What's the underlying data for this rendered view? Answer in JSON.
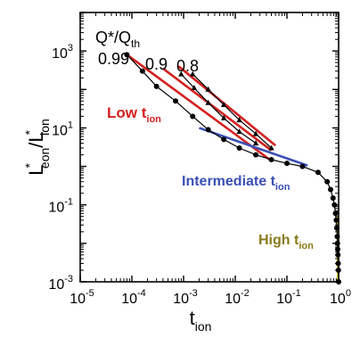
{
  "chart_data": {
    "type": "line",
    "x_scale": "log",
    "y_scale": "log",
    "xlim": [
      1e-05,
      1
    ],
    "ylim": [
      0.001,
      10000
    ],
    "x_ticks": [
      {
        "value": 1e-05,
        "base": "10",
        "exp": "-5"
      },
      {
        "value": 0.0001,
        "base": "10",
        "exp": "-4"
      },
      {
        "value": 0.001,
        "base": "10",
        "exp": "-3"
      },
      {
        "value": 0.01,
        "base": "10",
        "exp": "-2"
      },
      {
        "value": 0.1,
        "base": "10",
        "exp": "-1"
      },
      {
        "value": 1,
        "base": "10",
        "exp": "0"
      }
    ],
    "y_ticks": [
      {
        "value": 1000,
        "base": "10",
        "exp": "3"
      },
      {
        "value": 10,
        "base": "10",
        "exp": "1"
      },
      {
        "value": 0.1,
        "base": "10",
        "exp": "-1"
      },
      {
        "value": 0.001,
        "base": "10",
        "exp": "-3"
      }
    ],
    "xlabel": {
      "main": "t",
      "sub": "ion"
    },
    "ylabel": {
      "p1": "L",
      "sup1": "*",
      "sub1": "eon",
      "p2": "/L",
      "sup2": "*",
      "sub2": "ion"
    },
    "legend_title": {
      "main": "Q*/Q",
      "sub": "th"
    },
    "series": [
      {
        "name": "0.99",
        "color": "#000000",
        "marker": "circle",
        "x": [
          8e-05,
          0.00016,
          0.0003,
          0.0007,
          0.0015,
          0.003,
          0.006,
          0.012,
          0.025,
          0.05,
          0.1,
          0.2,
          0.4,
          0.6,
          0.7,
          0.78,
          0.83,
          0.87,
          0.9,
          0.92,
          0.94,
          0.95,
          0.96,
          0.97,
          0.98,
          0.99,
          1
        ],
        "y": [
          800,
          300,
          120,
          50,
          20,
          9,
          5,
          3,
          2,
          1.5,
          1.2,
          1,
          0.7,
          0.4,
          0.25,
          0.15,
          0.1,
          0.06,
          0.04,
          0.025,
          0.015,
          0.01,
          0.007,
          0.005,
          0.003,
          0.002,
          0.001
        ]
      },
      {
        "name": "0.9",
        "color": "#000000",
        "marker": "triangle",
        "x": [
          0.0009,
          0.0016,
          0.003,
          0.006,
          0.012,
          0.025
        ],
        "y": [
          250,
          110,
          45,
          18,
          8,
          4
        ]
      },
      {
        "name": "0.8",
        "color": "#000000",
        "marker": "triangle",
        "x": [
          0.0015,
          0.003,
          0.006,
          0.012,
          0.025,
          0.05
        ],
        "y": [
          250,
          100,
          40,
          16,
          7,
          3
        ]
      }
    ],
    "fit_lines": [
      {
        "regime": "low",
        "color": "#d42020",
        "x": [
          8e-05,
          0.05
        ],
        "y": [
          800,
          1.4
        ]
      },
      {
        "regime": "low",
        "color": "#d42020",
        "x": [
          0.0004,
          0.05
        ],
        "y": [
          350,
          2.6
        ]
      },
      {
        "regime": "low",
        "color": "#d42020",
        "x": [
          0.0008,
          0.06
        ],
        "y": [
          400,
          3.5
        ]
      },
      {
        "regime": "intermediate",
        "color": "#3a4fb5",
        "x": [
          0.002,
          0.25
        ],
        "y": [
          10,
          1.05
        ]
      },
      {
        "regime": "high",
        "color": "#e8d820",
        "x": [
          0.965,
          0.965
        ],
        "y": [
          0.05,
          0.001
        ]
      }
    ],
    "annotations": [
      {
        "main": "Low t",
        "sub": "ion",
        "color": "#d42020"
      },
      {
        "main": "Intermediate t",
        "sub": "ion",
        "color": "#3a4fb5"
      },
      {
        "main": "High t",
        "sub": "ion",
        "color": "#8a7a1a"
      }
    ],
    "grid": false
  }
}
